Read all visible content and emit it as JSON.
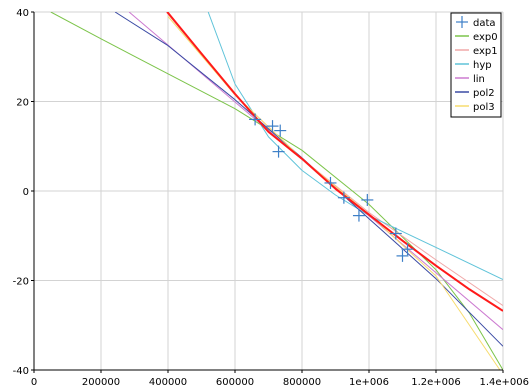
{
  "chart_data": {
    "type": "line",
    "title": "",
    "xlabel": "",
    "ylabel": "",
    "xlim": [
      0,
      1400000
    ],
    "ylim": [
      -40,
      40
    ],
    "grid": true,
    "legend_position": "top-right",
    "x_ticks": [
      {
        "value": 0,
        "label": "0"
      },
      {
        "value": 200000,
        "label": "200000"
      },
      {
        "value": 400000,
        "label": "400000"
      },
      {
        "value": 600000,
        "label": "600000"
      },
      {
        "value": 800000,
        "label": "800000"
      },
      {
        "value": 1000000,
        "label": "1e+006"
      },
      {
        "value": 1200000,
        "label": "1.2e+006"
      },
      {
        "value": 1400000,
        "label": "1.4e+006"
      }
    ],
    "y_ticks": [
      {
        "value": -40,
        "label": "-40"
      },
      {
        "value": -20,
        "label": "-20"
      },
      {
        "value": 0,
        "label": "0"
      },
      {
        "value": 20,
        "label": "20"
      },
      {
        "value": 40,
        "label": "40"
      }
    ],
    "scatter": {
      "name": "data",
      "color": "#3d7fc7",
      "points": [
        {
          "x": 660000,
          "y": 16
        },
        {
          "x": 712000,
          "y": 14.5
        },
        {
          "x": 735000,
          "y": 13.5
        },
        {
          "x": 730000,
          "y": 8.8
        },
        {
          "x": 885000,
          "y": 1.8
        },
        {
          "x": 925000,
          "y": -1.5
        },
        {
          "x": 970000,
          "y": -5.5
        },
        {
          "x": 995000,
          "y": -2
        },
        {
          "x": 1080000,
          "y": -9.5
        },
        {
          "x": 1100000,
          "y": -14.5
        },
        {
          "x": 1115000,
          "y": -13
        }
      ]
    },
    "series": [
      {
        "name": "exp0",
        "color": "#7cc44a",
        "width": 1,
        "points": [
          [
            50000,
            40
          ],
          [
            200000,
            34
          ],
          [
            400000,
            26.2
          ],
          [
            600000,
            18.4
          ],
          [
            800000,
            9.1
          ],
          [
            1000000,
            -3
          ],
          [
            1200000,
            -17.6
          ],
          [
            1300000,
            -27.3
          ],
          [
            1400000,
            -40
          ]
        ]
      },
      {
        "name": "exp1",
        "color": "#f0a8a8",
        "width": 1,
        "points": [
          [
            395000,
            40
          ],
          [
            600000,
            21.4
          ],
          [
            800000,
            7.2
          ],
          [
            1000000,
            -4.8
          ],
          [
            1200000,
            -15.4
          ],
          [
            1400000,
            -25.6
          ]
        ]
      },
      {
        "name": "hyp",
        "color": "#5fc3d9",
        "width": 1,
        "points": [
          [
            520000,
            40
          ],
          [
            600000,
            23.9
          ],
          [
            700000,
            12.1
          ],
          [
            800000,
            4.6
          ],
          [
            900000,
            -0.9
          ],
          [
            1000000,
            -5.5
          ],
          [
            1200000,
            -12.6
          ],
          [
            1400000,
            -19.8
          ]
        ]
      },
      {
        "name": "lin",
        "color": "#cc7ad0",
        "width": 1,
        "points": [
          [
            284000,
            40
          ],
          [
            1400000,
            -31
          ]
        ]
      },
      {
        "name": "pol2",
        "color": "#3a4aa4",
        "width": 1,
        "points": [
          [
            242000,
            40
          ],
          [
            400000,
            32.5
          ],
          [
            600000,
            20.4
          ],
          [
            800000,
            7.4
          ],
          [
            1000000,
            -6.2
          ],
          [
            1200000,
            -19.6
          ],
          [
            1400000,
            -34.7
          ]
        ]
      },
      {
        "name": "pol3",
        "color": "#f7dc6f",
        "width": 1,
        "points": [
          [
            400000,
            39
          ],
          [
            600000,
            21.5
          ],
          [
            800000,
            7.2
          ],
          [
            1000000,
            -5.2
          ],
          [
            1200000,
            -19
          ],
          [
            1400000,
            -41
          ]
        ]
      },
      {
        "name": "",
        "color": "#ff1a1a",
        "width": 2,
        "points": [
          [
            398000,
            40
          ],
          [
            500000,
            30.7
          ],
          [
            600000,
            21.7
          ],
          [
            700000,
            13.2
          ],
          [
            800000,
            7.2
          ],
          [
            900000,
            0.5
          ],
          [
            1000000,
            -5.3
          ],
          [
            1100000,
            -11.1
          ],
          [
            1200000,
            -16.7
          ],
          [
            1300000,
            -22
          ],
          [
            1400000,
            -26.8
          ]
        ]
      }
    ],
    "legend": [
      {
        "name": "data",
        "color": "#3d7fc7",
        "kind": "marker"
      },
      {
        "name": "exp0",
        "color": "#7cc44a",
        "kind": "line"
      },
      {
        "name": "exp1",
        "color": "#f0a8a8",
        "kind": "line"
      },
      {
        "name": "hyp",
        "color": "#5fc3d9",
        "kind": "line"
      },
      {
        "name": "lin",
        "color": "#cc7ad0",
        "kind": "line"
      },
      {
        "name": "pol2",
        "color": "#3a4aa4",
        "kind": "line"
      },
      {
        "name": "pol3",
        "color": "#f7dc6f",
        "kind": "line"
      }
    ]
  },
  "colors": {
    "grid": "#d3d3d3",
    "axis": "#000000",
    "background": "#ffffff"
  }
}
